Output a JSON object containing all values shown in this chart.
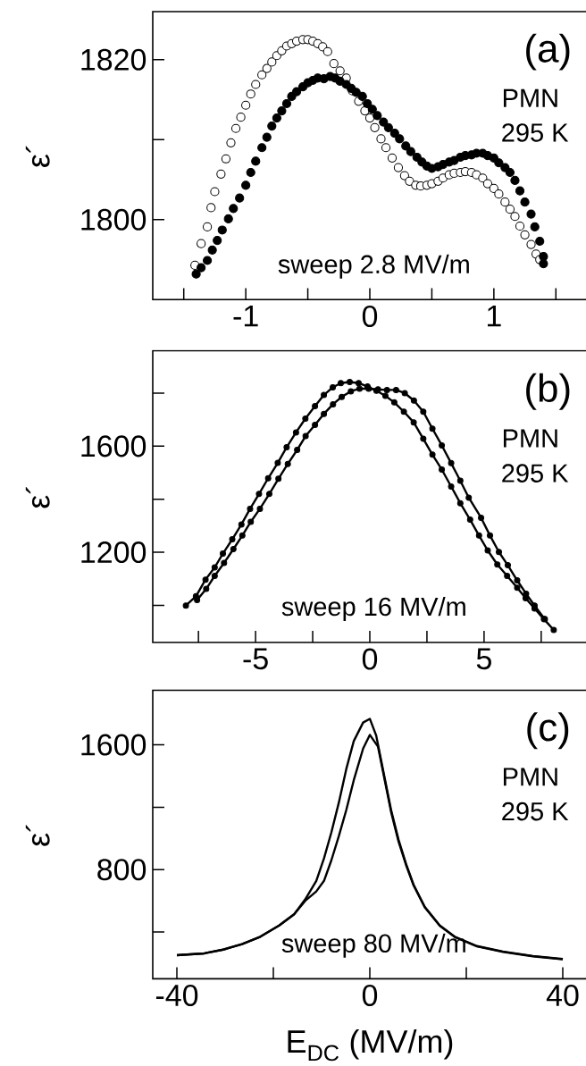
{
  "chart_data": [
    {
      "type": "scatter",
      "ylabel": "ε´",
      "xlim": [
        -1.75,
        1.75
      ],
      "ylim": [
        1790,
        1826
      ],
      "marker": "circle",
      "xticks": [
        {
          "value": -1.5,
          "label": null
        },
        -1,
        {
          "value": -0.5,
          "label": null
        },
        0,
        {
          "value": 0.5,
          "label": null
        },
        1,
        {
          "value": 1.5,
          "label": null
        }
      ],
      "yticks": [
        1800,
        {
          "value": 1810,
          "label": null
        },
        1820
      ],
      "annotations": [
        "(a)",
        "PMN",
        "295 K",
        "sweep 2.8 MV/m"
      ],
      "series": [
        {
          "color": "#ffffff",
          "x": [
            -1.41,
            -1.36,
            -1.31,
            -1.28,
            -1.25,
            -1.2,
            -1.16,
            -1.12,
            -1.08,
            -1.04,
            -1.0,
            -0.96,
            -0.92,
            -0.87,
            -0.83,
            -0.79,
            -0.75,
            -0.71,
            -0.67,
            -0.63,
            -0.59,
            -0.54,
            -0.5,
            -0.46,
            -0.42,
            -0.38,
            -0.34,
            -0.29,
            -0.24,
            -0.19,
            -0.14,
            -0.09,
            -0.04,
            0.0,
            0.04,
            0.09,
            0.13,
            0.18,
            0.23,
            0.28,
            0.32,
            0.37,
            0.41,
            0.46,
            0.5,
            0.55,
            0.59,
            0.64,
            0.68,
            0.73,
            0.77,
            0.82,
            0.86,
            0.91,
            0.95,
            1.0,
            1.04,
            1.09,
            1.13,
            1.17,
            1.21,
            1.25,
            1.3,
            1.34,
            1.37
          ],
          "values": [
            1794.3,
            1797.0,
            1799.1,
            1801.5,
            1803.5,
            1805.7,
            1807.6,
            1809.6,
            1811.4,
            1812.8,
            1814.3,
            1815.7,
            1816.9,
            1818.1,
            1818.9,
            1819.7,
            1820.5,
            1821.1,
            1821.7,
            1822.0,
            1822.3,
            1822.5,
            1822.5,
            1822.3,
            1822.0,
            1821.6,
            1821.0,
            1819.5,
            1818.6,
            1817.7,
            1816.1,
            1814.8,
            1813.6,
            1812.7,
            1811.5,
            1810.1,
            1809.0,
            1807.7,
            1806.5,
            1805.5,
            1804.8,
            1804.3,
            1804.2,
            1804.3,
            1804.5,
            1804.8,
            1805.2,
            1805.6,
            1805.8,
            1805.9,
            1806.0,
            1805.9,
            1805.6,
            1805.2,
            1804.5,
            1803.9,
            1803.2,
            1802.2,
            1801.3,
            1800.4,
            1799.2,
            1798.1,
            1796.9,
            1795.7,
            1795.0
          ]
        },
        {
          "color": "#000000",
          "x": [
            -1.4,
            -1.36,
            -1.31,
            -1.27,
            -1.23,
            -1.19,
            -1.14,
            -1.1,
            -1.05,
            -1.0,
            -0.96,
            -0.92,
            -0.87,
            -0.83,
            -0.79,
            -0.75,
            -0.71,
            -0.67,
            -0.63,
            -0.59,
            -0.54,
            -0.5,
            -0.46,
            -0.42,
            -0.37,
            -0.32,
            -0.28,
            -0.24,
            -0.19,
            -0.15,
            -0.11,
            -0.06,
            -0.02,
            0.02,
            0.06,
            0.11,
            0.15,
            0.2,
            0.24,
            0.29,
            0.33,
            0.38,
            0.42,
            0.46,
            0.5,
            0.55,
            0.59,
            0.64,
            0.68,
            0.73,
            0.77,
            0.82,
            0.86,
            0.91,
            0.95,
            1.0,
            1.04,
            1.09,
            1.13,
            1.17,
            1.21,
            1.25,
            1.3,
            1.33,
            1.37,
            1.4,
            1.4
          ],
          "values": [
            1793.2,
            1794.0,
            1794.9,
            1796.2,
            1797.4,
            1798.7,
            1800.1,
            1801.4,
            1802.7,
            1804.3,
            1805.9,
            1807.3,
            1809.0,
            1810.3,
            1811.7,
            1812.7,
            1813.6,
            1814.5,
            1815.4,
            1816.0,
            1816.6,
            1817.1,
            1817.4,
            1817.7,
            1817.6,
            1817.9,
            1817.7,
            1817.3,
            1816.9,
            1816.4,
            1815.9,
            1815.4,
            1814.5,
            1813.8,
            1813.0,
            1812.2,
            1811.5,
            1810.8,
            1810.1,
            1809.2,
            1808.5,
            1807.8,
            1807.2,
            1806.7,
            1806.4,
            1806.6,
            1806.9,
            1807.2,
            1807.4,
            1807.8,
            1808.0,
            1808.1,
            1808.3,
            1808.3,
            1808.0,
            1807.7,
            1807.1,
            1806.5,
            1805.9,
            1804.9,
            1803.6,
            1802.2,
            1800.7,
            1799.1,
            1797.3,
            1795.4,
            1794.5
          ]
        }
      ]
    },
    {
      "type": "line",
      "ylabel": "ε´",
      "xlim": [
        -9.5,
        9.5
      ],
      "ylim": [
        860,
        1960
      ],
      "marker": "circle",
      "line_style": "solid",
      "xticks": [
        {
          "value": -7.5,
          "label": null
        },
        -5,
        {
          "value": -2.5,
          "label": null
        },
        0,
        {
          "value": 2.5,
          "label": null
        },
        5,
        {
          "value": 7.5,
          "label": null
        }
      ],
      "yticks": [
        {
          "value": 1000,
          "label": null
        },
        1200,
        {
          "value": 1400,
          "label": null
        },
        1600,
        {
          "value": 1800,
          "label": null
        }
      ],
      "annotations": [
        "(b)",
        "PMN",
        "295 K",
        "sweep 16 MV/m"
      ],
      "series": [
        {
          "color": "#000000",
          "x": [
            -8.05,
            -7.61,
            -7.19,
            -6.79,
            -6.43,
            -6.02,
            -5.62,
            -5.24,
            -4.85,
            -4.45,
            -4.03,
            -3.64,
            -3.23,
            -2.82,
            -2.4,
            -2.01,
            -1.62,
            -1.27,
            -0.88,
            -0.49,
            -0.1,
            0.29,
            0.68,
            1.07,
            1.49,
            1.92,
            2.34,
            2.74,
            3.15,
            3.56,
            3.96,
            4.39,
            4.78,
            5.16,
            5.58,
            6.01,
            6.45,
            6.82,
            7.21,
            7.62,
            8.05
          ],
          "values": [
            999,
            1034,
            1097,
            1143,
            1195,
            1249,
            1305,
            1364,
            1420,
            1479,
            1537,
            1596,
            1652,
            1704,
            1751,
            1793,
            1822,
            1838,
            1842,
            1838,
            1825,
            1809,
            1790,
            1765,
            1730,
            1690,
            1628,
            1568,
            1512,
            1448,
            1385,
            1323,
            1263,
            1207,
            1154,
            1111,
            1066,
            1027,
            988,
            948,
            907
          ]
        },
        {
          "color": "#000000",
          "x": [
            -7.56,
            -7.16,
            -6.79,
            -6.38,
            -5.97,
            -5.58,
            -5.21,
            -4.81,
            -4.4,
            -4.0,
            -3.59,
            -3.18,
            -2.81,
            -2.4,
            -2.01,
            -1.61,
            -1.23,
            -0.83,
            -0.45,
            -0.05,
            0.36,
            0.75,
            1.15,
            1.53,
            1.93,
            2.34,
            2.74,
            3.15,
            3.56,
            3.96,
            4.33,
            4.87,
            5.26,
            5.65,
            6.04,
            6.45,
            6.84,
            7.21,
            7.66
          ],
          "values": [
            1020,
            1062,
            1111,
            1160,
            1212,
            1263,
            1315,
            1364,
            1420,
            1477,
            1533,
            1586,
            1638,
            1680,
            1722,
            1758,
            1786,
            1807,
            1817,
            1817,
            1814,
            1812,
            1812,
            1800,
            1772,
            1730,
            1666,
            1603,
            1536,
            1470,
            1406,
            1330,
            1263,
            1201,
            1151,
            1094,
            1044,
            999,
            948
          ]
        }
      ]
    },
    {
      "type": "line",
      "ylabel": "ε´",
      "xlabel": "E$_{DC}$ (MV/m)",
      "xlim": [
        -45,
        45
      ],
      "ylim": [
        100,
        1950
      ],
      "line_style": "solid",
      "xticks": [
        -40,
        {
          "value": -20,
          "label": null
        },
        0,
        {
          "value": 20,
          "label": null
        },
        40
      ],
      "yticks": [
        {
          "value": 400,
          "label": null
        },
        800,
        {
          "value": 1200,
          "label": null
        },
        1600
      ],
      "annotations": [
        "(c)",
        "PMN",
        "295 K",
        "sweep 80 MV/m"
      ],
      "series": [
        {
          "color": "#000000",
          "x": [
            -40,
            -34.3,
            -30.4,
            -26.5,
            -22.7,
            -18.8,
            -15.7,
            -13.4,
            -11.1,
            -9.5,
            -7.97,
            -6.42,
            -4.88,
            -3.33,
            -1.39,
            0,
            1.32,
            2.86,
            4.41,
            5.96,
            7.51,
            9.06,
            11.4,
            14.5,
            17.6,
            22.2,
            27.6,
            33.8,
            40
          ],
          "values": [
            251,
            263,
            287,
            322,
            370,
            442,
            513,
            609,
            728,
            872,
            1039,
            1230,
            1445,
            1624,
            1743,
            1767,
            1660,
            1421,
            1182,
            991,
            836,
            704,
            561,
            442,
            370,
            310,
            275,
            246,
            227
          ]
        },
        {
          "color": "#000000",
          "x": [
            -40,
            -34.3,
            -30.4,
            -26.5,
            -22.7,
            -18.8,
            -15.7,
            -13.4,
            -11.1,
            -9.5,
            -7.97,
            -6.42,
            -4.88,
            -3.33,
            -1.39,
            0,
            1.7,
            2.86,
            4.41,
            5.96,
            7.51,
            9.06,
            11.4,
            14.5,
            17.6,
            22.2,
            27.6,
            33.8,
            40
          ],
          "values": [
            251,
            263,
            287,
            322,
            370,
            442,
            513,
            600,
            660,
            728,
            860,
            1015,
            1182,
            1373,
            1576,
            1664,
            1588,
            1409,
            1170,
            979,
            830,
            700,
            558,
            440,
            368,
            308,
            272,
            244,
            225
          ]
        }
      ]
    }
  ]
}
